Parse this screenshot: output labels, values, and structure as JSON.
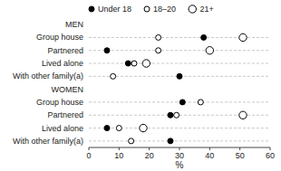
{
  "chart_data": {
    "type": "dot",
    "orientation": "horizontal",
    "categories": [
      "MEN",
      "Group house",
      "Partnered",
      "Lived alone",
      "With other family(a)",
      "WOMEN",
      "Group house",
      "Partnered",
      "Lived alone",
      "With other family(a)"
    ],
    "series": [
      {
        "name": "Under 18",
        "color": "#000000",
        "marker": "circle",
        "values": [
          null,
          38,
          6,
          13,
          30,
          null,
          31,
          27,
          6,
          27
        ]
      },
      {
        "name": "18–20",
        "color": "#000000",
        "marker": "open-circle",
        "values": [
          null,
          23,
          23,
          15,
          8,
          null,
          37,
          29,
          10,
          14
        ]
      },
      {
        "name": "21+",
        "color": "#000000",
        "marker": "large-open-circle",
        "values": [
          null,
          51,
          40,
          19,
          null,
          null,
          null,
          51,
          18,
          null
        ]
      }
    ],
    "xlabel": "%",
    "xlim": [
      0,
      60
    ],
    "xticks": [
      0,
      10,
      20,
      30,
      40,
      50,
      60
    ],
    "grid": true,
    "legend": "top"
  }
}
